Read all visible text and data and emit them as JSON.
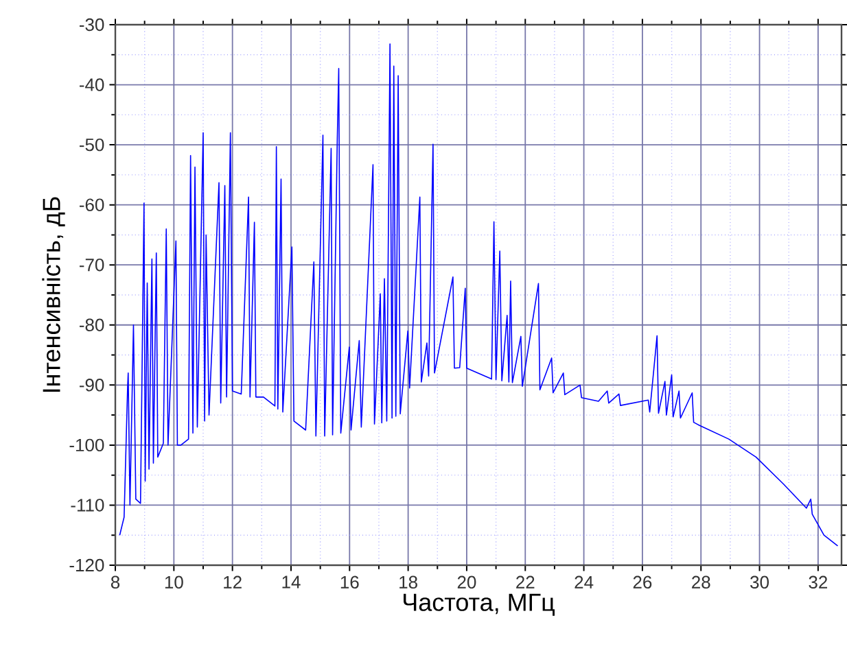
{
  "chart_data": {
    "type": "line",
    "xlabel": "Частота, МГц",
    "ylabel": "Інтенсивність, дБ",
    "xlim": [
      8,
      32.8
    ],
    "ylim": [
      -120,
      -30
    ],
    "xticks": [
      8,
      {
        "value": 9,
        "label": null
      },
      10,
      {
        "value": 11,
        "label": null
      },
      12,
      {
        "value": 13,
        "label": null
      },
      14,
      {
        "value": 15,
        "label": null
      },
      16,
      {
        "value": 17,
        "label": null
      },
      18,
      {
        "value": 19,
        "label": null
      },
      20,
      {
        "value": 21,
        "label": null
      },
      22,
      {
        "value": 23,
        "label": null
      },
      24,
      {
        "value": 25,
        "label": null
      },
      26,
      {
        "value": 27,
        "label": null
      },
      28,
      {
        "value": 29,
        "label": null
      },
      30,
      {
        "value": 31,
        "label": null
      },
      32
    ],
    "yticks": [
      -120,
      {
        "value": -115,
        "label": null
      },
      -110,
      {
        "value": -105,
        "label": null
      },
      -100,
      {
        "value": -95,
        "label": null
      },
      -90,
      {
        "value": -85,
        "label": null
      },
      -80,
      {
        "value": -75,
        "label": null
      },
      -70,
      {
        "value": -65,
        "label": null
      },
      -60,
      {
        "value": -55,
        "label": null
      },
      -50,
      {
        "value": -45,
        "label": null
      },
      -40,
      {
        "value": -35,
        "label": null
      },
      -30
    ],
    "grid": true,
    "marker": "none",
    "line_style": "solid",
    "series": [
      {
        "color": "#0000ff",
        "x": [
          8.15,
          8.3,
          8.42,
          8.44,
          8.5,
          8.62,
          8.7,
          8.86,
          8.98,
          9.02,
          9.09,
          9.15,
          9.25,
          9.3,
          9.4,
          9.45,
          9.64,
          9.74,
          9.8,
          10.07,
          10.12,
          10.24,
          10.5,
          10.57,
          10.65,
          10.72,
          10.8,
          11.0,
          11.05,
          11.1,
          11.2,
          11.54,
          11.6,
          11.74,
          11.8,
          11.93,
          12.0,
          12.3,
          12.55,
          12.6,
          12.75,
          12.8,
          13.06,
          13.45,
          13.5,
          13.55,
          13.66,
          13.72,
          14.03,
          14.1,
          14.5,
          14.78,
          14.85,
          15.09,
          15.15,
          15.37,
          15.42,
          15.58,
          15.63,
          15.7,
          15.99,
          16.05,
          16.33,
          16.4,
          16.8,
          16.85,
          17.05,
          17.1,
          17.19,
          17.27,
          17.38,
          17.45,
          17.51,
          17.58,
          17.66,
          17.73,
          17.99,
          18.05,
          18.4,
          18.45,
          18.64,
          18.7,
          18.85,
          18.9,
          19.53,
          19.58,
          19.76,
          19.95,
          20.0,
          20.85,
          20.93,
          21.0,
          21.13,
          21.2,
          21.38,
          21.44,
          21.5,
          21.56,
          21.85,
          21.9,
          22.45,
          22.5,
          22.9,
          22.95,
          23.3,
          23.35,
          23.87,
          23.92,
          24.5,
          24.8,
          24.85,
          25.2,
          25.25,
          26.2,
          26.25,
          26.5,
          26.55,
          26.77,
          26.82,
          27.0,
          27.05,
          27.25,
          27.3,
          27.7,
          27.75,
          27.94,
          28.95,
          29.88,
          30.82,
          31.6,
          31.75,
          31.8,
          32.2,
          32.67
        ],
        "values": [
          -115,
          -112,
          -90.3,
          -88,
          -110,
          -80,
          -109,
          -109.7,
          -59.7,
          -106,
          -73,
          -104,
          -69,
          -103,
          -68,
          -102,
          -99.7,
          -64,
          -100,
          -66,
          -100,
          -100,
          -99,
          -51.8,
          -98,
          -53.7,
          -97,
          -48,
          -96,
          -65,
          -95,
          -56.3,
          -93,
          -56.8,
          -92,
          -48,
          -91,
          -91.5,
          -58.7,
          -92,
          -62.9,
          -92,
          -92,
          -93.5,
          -50.3,
          -94,
          -55.7,
          -94.5,
          -67,
          -96,
          -97.5,
          -69.5,
          -98.5,
          -48.4,
          -98.5,
          -50.6,
          -98.3,
          -49.1,
          -37.3,
          -98,
          -83.7,
          -97.5,
          -82.6,
          -97,
          -53.3,
          -96.5,
          -74.8,
          -96.3,
          -72.3,
          -96,
          -33.2,
          -95.5,
          -36.9,
          -95.2,
          -38.5,
          -94.8,
          -81,
          -90.5,
          -58.7,
          -89.5,
          -83,
          -88.5,
          -49.9,
          -88,
          -72,
          -87.2,
          -87.1,
          -73.9,
          -87.2,
          -89,
          -62.8,
          -89.1,
          -67.7,
          -89.3,
          -78.4,
          -89.5,
          -72.7,
          -89.6,
          -81.9,
          -90.2,
          -73.1,
          -90.8,
          -85.5,
          -91.3,
          -88,
          -91.6,
          -90,
          -92.1,
          -92.7,
          -91,
          -93,
          -91.5,
          -93.4,
          -92.5,
          -94.5,
          -81.8,
          -94.7,
          -89.4,
          -95,
          -88.3,
          -95.3,
          -91,
          -95.5,
          -91.3,
          -96.2,
          -96.7,
          -99,
          -102,
          -106.5,
          -110.5,
          -109,
          -111.5,
          -115,
          -116.8
        ]
      }
    ]
  }
}
